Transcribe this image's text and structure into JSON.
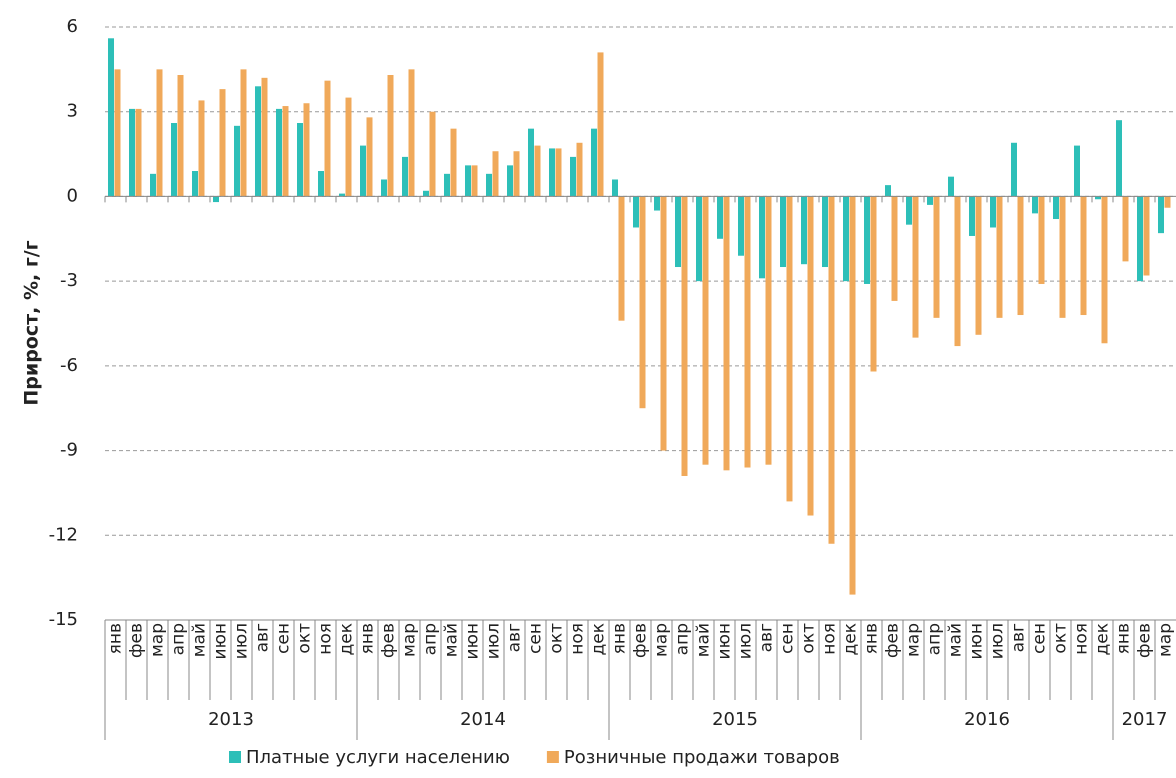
{
  "chart_data": {
    "type": "bar",
    "ylabel": "Прирост, %, г/г",
    "categories": [
      "янв",
      "фев",
      "мар",
      "апр",
      "май",
      "июн",
      "июл",
      "авг",
      "сен",
      "окт",
      "ноя",
      "дек",
      "янв",
      "фев",
      "мар",
      "апр",
      "май",
      "июн",
      "июл",
      "авг",
      "сен",
      "окт",
      "ноя",
      "дек",
      "янв",
      "фев",
      "мар",
      "апр",
      "май",
      "июн",
      "июл",
      "авг",
      "сен",
      "окт",
      "ноя",
      "дек",
      "янв",
      "фев",
      "мар",
      "апр",
      "май",
      "июн",
      "июл",
      "авг",
      "сен",
      "окт",
      "ноя",
      "дек",
      "янв",
      "фев",
      "мар"
    ],
    "groups": [
      "2013",
      "2014",
      "2015",
      "2016",
      "2017"
    ],
    "series": [
      {
        "name": "Платные услуги населению",
        "color": "#2dbfb8",
        "values": [
          5.6,
          3.1,
          0.8,
          2.6,
          0.9,
          -0.2,
          2.5,
          3.9,
          3.1,
          2.6,
          0.9,
          0.1,
          1.8,
          0.6,
          1.4,
          0.2,
          0.8,
          1.1,
          0.8,
          1.1,
          2.4,
          1.7,
          1.4,
          2.4,
          0.6,
          -1.1,
          -0.5,
          -2.5,
          -3.0,
          -1.5,
          -2.1,
          -2.9,
          -2.5,
          -2.4,
          -2.5,
          -3.0,
          -3.1,
          0.4,
          -1.0,
          -0.3,
          0.7,
          -1.4,
          -1.1,
          1.9,
          -0.6,
          -0.8,
          1.8,
          -0.1,
          2.7,
          -3.0,
          -1.3
        ]
      },
      {
        "name": "Розничные продажи товаров",
        "color": "#f0a95a",
        "values": [
          4.5,
          3.1,
          4.5,
          4.3,
          3.4,
          3.8,
          4.5,
          4.2,
          3.2,
          3.3,
          4.1,
          3.5,
          2.8,
          4.3,
          4.5,
          3.0,
          2.4,
          1.1,
          1.6,
          1.6,
          1.8,
          1.7,
          1.9,
          5.1,
          -4.4,
          -7.5,
          -9.0,
          -9.9,
          -9.5,
          -9.7,
          -9.6,
          -9.5,
          -10.8,
          -11.3,
          -12.3,
          -14.1,
          -6.2,
          -3.7,
          -5.0,
          -4.3,
          -5.3,
          -4.9,
          -4.3,
          -4.2,
          -3.1,
          -4.3,
          -4.2,
          -5.2,
          -2.3,
          -2.8,
          -0.4
        ]
      }
    ],
    "ylim": [
      -15,
      6
    ],
    "yticks": [
      -15,
      -12,
      -9,
      -6,
      -3,
      0,
      3,
      6
    ],
    "grid": true,
    "legend": "bottom"
  }
}
